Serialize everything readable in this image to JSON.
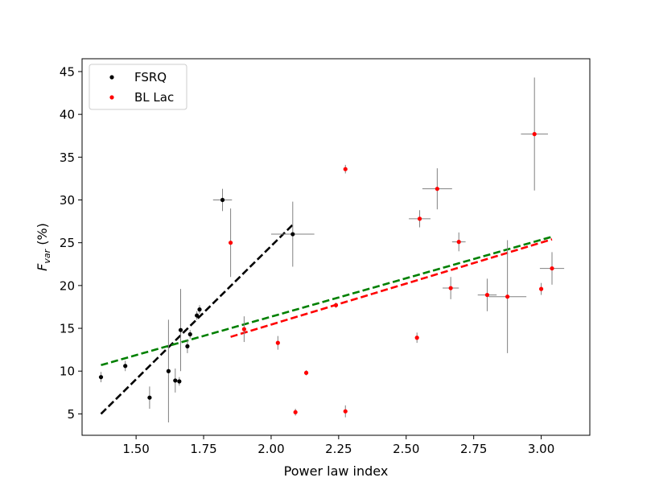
{
  "chart_data": {
    "type": "scatter",
    "xlabel": "Power law index",
    "ylabel": "F",
    "ylabel_sub": "var",
    "ylabel_suffix": " (%)",
    "xlim": [
      1.3,
      3.18
    ],
    "ylim": [
      2.5,
      46.5
    ],
    "xticks": [
      1.5,
      1.75,
      2.0,
      2.25,
      2.5,
      2.75,
      3.0
    ],
    "xtick_labels": [
      "1.50",
      "1.75",
      "2.00",
      "2.25",
      "2.50",
      "2.75",
      "3.00"
    ],
    "yticks": [
      5,
      10,
      15,
      20,
      25,
      30,
      35,
      40,
      45
    ],
    "ytick_labels": [
      "5",
      "10",
      "15",
      "20",
      "25",
      "30",
      "35",
      "40",
      "45"
    ],
    "grid": false,
    "legend_position": "top-left",
    "series": [
      {
        "name": "FSRQ",
        "color": "#000000",
        "points": [
          {
            "x": 1.37,
            "y": 9.3,
            "xerr": 0.0,
            "yerr": 0.6
          },
          {
            "x": 1.46,
            "y": 10.6,
            "xerr": 0.0,
            "yerr": 0.6
          },
          {
            "x": 1.55,
            "y": 6.9,
            "xerr": 0.0,
            "yerr": 1.3
          },
          {
            "x": 1.62,
            "y": 10.0,
            "xerr": 0.0,
            "yerr": 6.0
          },
          {
            "x": 1.645,
            "y": 8.9,
            "xerr": 0.0,
            "yerr": 1.4
          },
          {
            "x": 1.66,
            "y": 8.8,
            "xerr": 0.0,
            "yerr": 0.5
          },
          {
            "x": 1.665,
            "y": 14.8,
            "xerr": 0.0,
            "yerr": 4.8
          },
          {
            "x": 1.69,
            "y": 12.9,
            "xerr": 0.0,
            "yerr": 0.8
          },
          {
            "x": 1.7,
            "y": 14.3,
            "xerr": 0.0,
            "yerr": 0.5
          },
          {
            "x": 1.725,
            "y": 16.5,
            "xerr": 0.0,
            "yerr": 0.5
          },
          {
            "x": 1.735,
            "y": 17.2,
            "xerr": 0.0,
            "yerr": 0.5
          },
          {
            "x": 1.82,
            "y": 30.0,
            "xerr": 0.035,
            "yerr": 1.3
          },
          {
            "x": 2.08,
            "y": 26.0,
            "xerr": 0.08,
            "yerr": 3.8
          }
        ]
      },
      {
        "name": "BL Lac",
        "color": "#ff0000",
        "points": [
          {
            "x": 1.85,
            "y": 25.0,
            "xerr": 0.0,
            "yerr": 4.0
          },
          {
            "x": 1.9,
            "y": 14.9,
            "xerr": 0.0,
            "yerr": 1.5
          },
          {
            "x": 2.025,
            "y": 13.3,
            "xerr": 0.0,
            "yerr": 0.8
          },
          {
            "x": 2.09,
            "y": 5.2,
            "xerr": 0.0,
            "yerr": 0.4
          },
          {
            "x": 2.13,
            "y": 9.8,
            "xerr": 0.0,
            "yerr": 0.3
          },
          {
            "x": 2.24,
            "y": 17.7,
            "xerr": 0.0,
            "yerr": 0.3
          },
          {
            "x": 2.275,
            "y": 33.6,
            "xerr": 0.0,
            "yerr": 0.5
          },
          {
            "x": 2.275,
            "y": 5.3,
            "xerr": 0.0,
            "yerr": 0.7
          },
          {
            "x": 2.54,
            "y": 13.9,
            "xerr": 0.0,
            "yerr": 0.6
          },
          {
            "x": 2.55,
            "y": 27.8,
            "xerr": 0.04,
            "yerr": 1.0
          },
          {
            "x": 2.615,
            "y": 31.3,
            "xerr": 0.055,
            "yerr": 2.4
          },
          {
            "x": 2.665,
            "y": 19.7,
            "xerr": 0.03,
            "yerr": 1.3
          },
          {
            "x": 2.695,
            "y": 25.1,
            "xerr": 0.025,
            "yerr": 1.1
          },
          {
            "x": 2.8,
            "y": 18.9,
            "xerr": 0.035,
            "yerr": 1.9
          },
          {
            "x": 2.875,
            "y": 18.7,
            "xerr": 0.07,
            "yerr": 6.6
          },
          {
            "x": 2.975,
            "y": 37.7,
            "xerr": 0.05,
            "yerr": 6.6
          },
          {
            "x": 3.0,
            "y": 19.6,
            "xerr": 0.0,
            "yerr": 0.7
          },
          {
            "x": 3.04,
            "y": 22.0,
            "xerr": 0.045,
            "yerr": 1.9
          }
        ]
      }
    ],
    "fit_lines": [
      {
        "color": "#000000",
        "x": [
          1.37,
          2.08
        ],
        "y": [
          5.0,
          27.1
        ]
      },
      {
        "color": "#ff0000",
        "x": [
          1.85,
          3.04
        ],
        "y": [
          14.0,
          25.4
        ]
      },
      {
        "color": "#008000",
        "x": [
          1.37,
          3.04
        ],
        "y": [
          10.7,
          25.7
        ]
      }
    ]
  }
}
